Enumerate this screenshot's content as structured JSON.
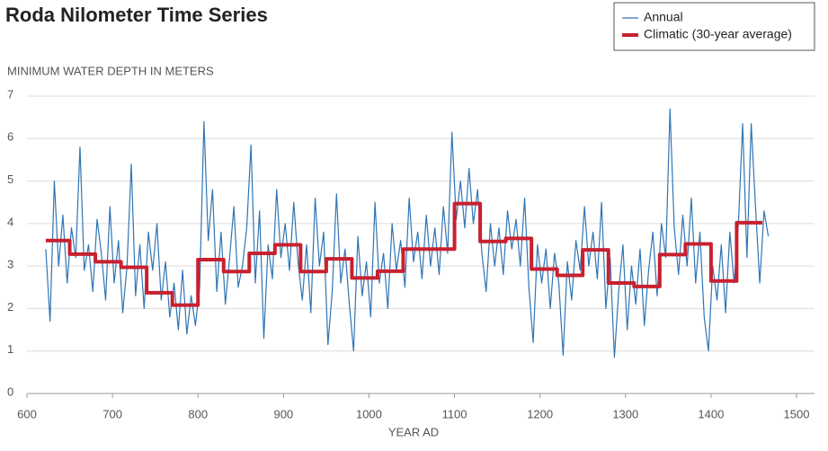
{
  "chart_data": {
    "type": "line",
    "title": "Roda Nilometer Time Series",
    "y_label": "MINIMUM WATER DEPTH IN METERS",
    "x_label": "YEAR AD",
    "xlim": [
      600,
      1500
    ],
    "xticks": [
      600,
      700,
      800,
      900,
      1000,
      1100,
      1200,
      1300,
      1400,
      1500
    ],
    "ylim": [
      0,
      7
    ],
    "yticks": [
      0,
      1,
      2,
      3,
      4,
      5,
      6,
      7
    ],
    "grid": true,
    "legend": "upper right",
    "series": [
      {
        "name": "Annual",
        "color": "#2f75b5",
        "width": 1.2,
        "x": [
          622,
          627,
          632,
          637,
          642,
          647,
          652,
          657,
          662,
          667,
          672,
          677,
          682,
          687,
          692,
          697,
          702,
          707,
          712,
          717,
          722,
          727,
          732,
          737,
          742,
          747,
          752,
          757,
          762,
          767,
          772,
          777,
          782,
          787,
          792,
          797,
          802,
          807,
          812,
          817,
          822,
          827,
          832,
          837,
          842,
          847,
          852,
          857,
          862,
          867,
          872,
          877,
          882,
          887,
          892,
          897,
          902,
          907,
          912,
          917,
          922,
          927,
          932,
          937,
          942,
          947,
          952,
          957,
          962,
          967,
          972,
          977,
          982,
          987,
          992,
          997,
          1002,
          1007,
          1012,
          1017,
          1022,
          1027,
          1032,
          1037,
          1042,
          1047,
          1052,
          1057,
          1062,
          1067,
          1072,
          1077,
          1082,
          1087,
          1092,
          1097,
          1102,
          1107,
          1112,
          1117,
          1122,
          1127,
          1132,
          1137,
          1142,
          1147,
          1152,
          1157,
          1162,
          1167,
          1172,
          1177,
          1182,
          1187,
          1192,
          1197,
          1202,
          1207,
          1212,
          1217,
          1222,
          1227,
          1232,
          1237,
          1242,
          1247,
          1252,
          1257,
          1262,
          1267,
          1272,
          1277,
          1282,
          1287,
          1292,
          1297,
          1302,
          1307,
          1312,
          1317,
          1322,
          1327,
          1332,
          1337,
          1342,
          1347,
          1352,
          1357,
          1362,
          1367,
          1372,
          1377,
          1382,
          1387,
          1392,
          1397,
          1402,
          1407,
          1412,
          1417,
          1422,
          1427,
          1432,
          1437,
          1442,
          1447,
          1452,
          1457,
          1462,
          1467
        ],
        "values": [
          3.4,
          1.7,
          5.0,
          3.0,
          4.2,
          2.6,
          3.9,
          3.2,
          5.8,
          2.9,
          3.5,
          2.4,
          4.1,
          3.3,
          2.2,
          4.4,
          2.6,
          3.6,
          1.9,
          3.0,
          5.4,
          2.3,
          3.5,
          2.0,
          3.8,
          2.9,
          4.0,
          2.2,
          3.1,
          1.8,
          2.6,
          1.5,
          2.9,
          1.4,
          2.3,
          1.6,
          2.5,
          6.4,
          3.6,
          4.8,
          2.4,
          3.8,
          2.1,
          3.2,
          4.4,
          2.5,
          3.0,
          3.9,
          5.85,
          2.6,
          4.3,
          1.3,
          3.5,
          2.7,
          4.8,
          3.2,
          4.0,
          2.9,
          4.5,
          3.1,
          2.2,
          3.5,
          1.9,
          4.6,
          3.0,
          3.8,
          1.15,
          2.4,
          4.7,
          2.6,
          3.4,
          2.1,
          1.0,
          3.7,
          2.3,
          3.1,
          1.8,
          4.5,
          2.6,
          3.3,
          2.0,
          4.0,
          2.9,
          3.6,
          2.5,
          4.6,
          3.1,
          3.8,
          2.7,
          4.2,
          3.0,
          3.9,
          2.8,
          4.4,
          3.3,
          6.15,
          4.1,
          5.0,
          3.9,
          5.3,
          4.0,
          4.8,
          3.3,
          2.4,
          4.0,
          3.0,
          3.9,
          2.8,
          4.3,
          3.4,
          4.1,
          3.0,
          4.6,
          2.5,
          1.2,
          3.5,
          2.6,
          3.4,
          2.0,
          3.3,
          2.6,
          0.9,
          3.1,
          2.2,
          3.6,
          2.9,
          4.4,
          3.0,
          3.8,
          2.7,
          4.5,
          2.0,
          3.2,
          0.85,
          2.4,
          3.5,
          1.5,
          3.0,
          2.1,
          3.4,
          1.6,
          2.9,
          3.8,
          2.3,
          4.0,
          3.2,
          6.7,
          3.9,
          2.8,
          4.2,
          3.0,
          4.6,
          2.6,
          3.8,
          1.8,
          1.0,
          3.0,
          2.2,
          3.5,
          1.9,
          3.8,
          2.6,
          4.0,
          6.35,
          3.2,
          6.35,
          4.4,
          2.6,
          4.3,
          3.7
        ]
      },
      {
        "name": "Climatic (30-year average)",
        "color": "#c8202f",
        "width": 4,
        "x": [
          622,
          650,
          650,
          680,
          680,
          710,
          710,
          740,
          740,
          770,
          770,
          800,
          800,
          830,
          830,
          860,
          860,
          890,
          890,
          920,
          920,
          950,
          950,
          980,
          980,
          1010,
          1010,
          1040,
          1040,
          1070,
          1070,
          1100,
          1100,
          1130,
          1130,
          1160,
          1160,
          1190,
          1190,
          1220,
          1220,
          1250,
          1250,
          1280,
          1280,
          1310,
          1310,
          1340,
          1340,
          1370,
          1370,
          1400,
          1400,
          1430,
          1430,
          1460
        ],
        "values": [
          3.6,
          3.6,
          3.28,
          3.28,
          3.1,
          3.1,
          2.97,
          2.97,
          2.37,
          2.37,
          2.08,
          2.08,
          3.15,
          3.15,
          2.87,
          2.87,
          3.3,
          3.3,
          3.5,
          3.5,
          2.87,
          2.87,
          3.17,
          3.17,
          2.72,
          2.72,
          2.88,
          2.88,
          3.4,
          3.4,
          3.4,
          3.4,
          4.47,
          4.47,
          3.58,
          3.58,
          3.65,
          3.65,
          2.93,
          2.93,
          2.78,
          2.78,
          3.38,
          3.38,
          2.6,
          2.6,
          2.52,
          2.52,
          3.27,
          3.27,
          3.52,
          3.52,
          2.65,
          2.65,
          4.02,
          4.02
        ]
      }
    ]
  }
}
